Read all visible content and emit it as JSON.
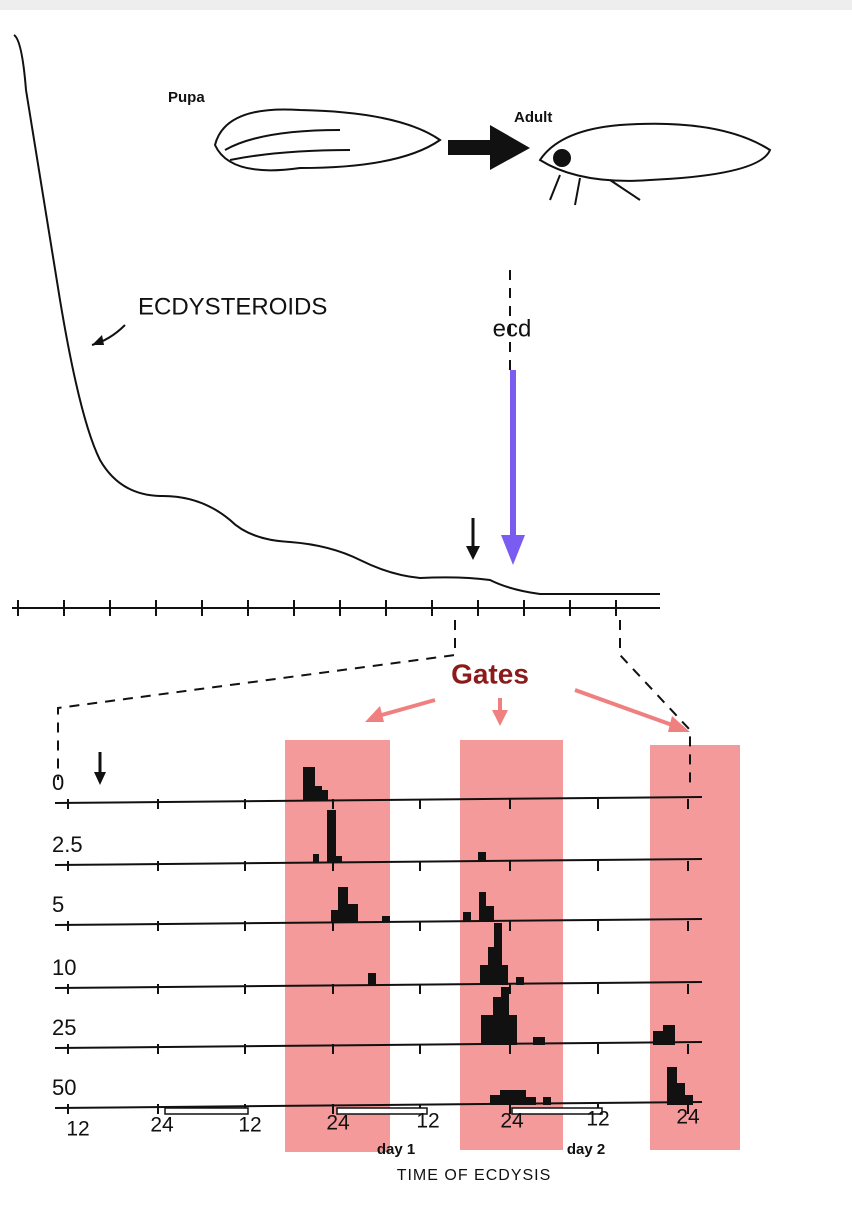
{
  "labels": {
    "pupa": "Pupa",
    "adult": "Adult",
    "ecdysteroids": "ECDYSTEROIDS",
    "ecd": "ecd",
    "gates": "Gates"
  },
  "rows": [
    "0",
    "2.5",
    "5",
    "10",
    "25",
    "50"
  ],
  "x_axis": {
    "ticks": [
      "12",
      "24",
      "12",
      "24",
      "12",
      "24",
      "12",
      "24"
    ],
    "day_labels": [
      "day 1",
      "day 2"
    ],
    "title": "TIME OF ECDYSIS"
  }
}
